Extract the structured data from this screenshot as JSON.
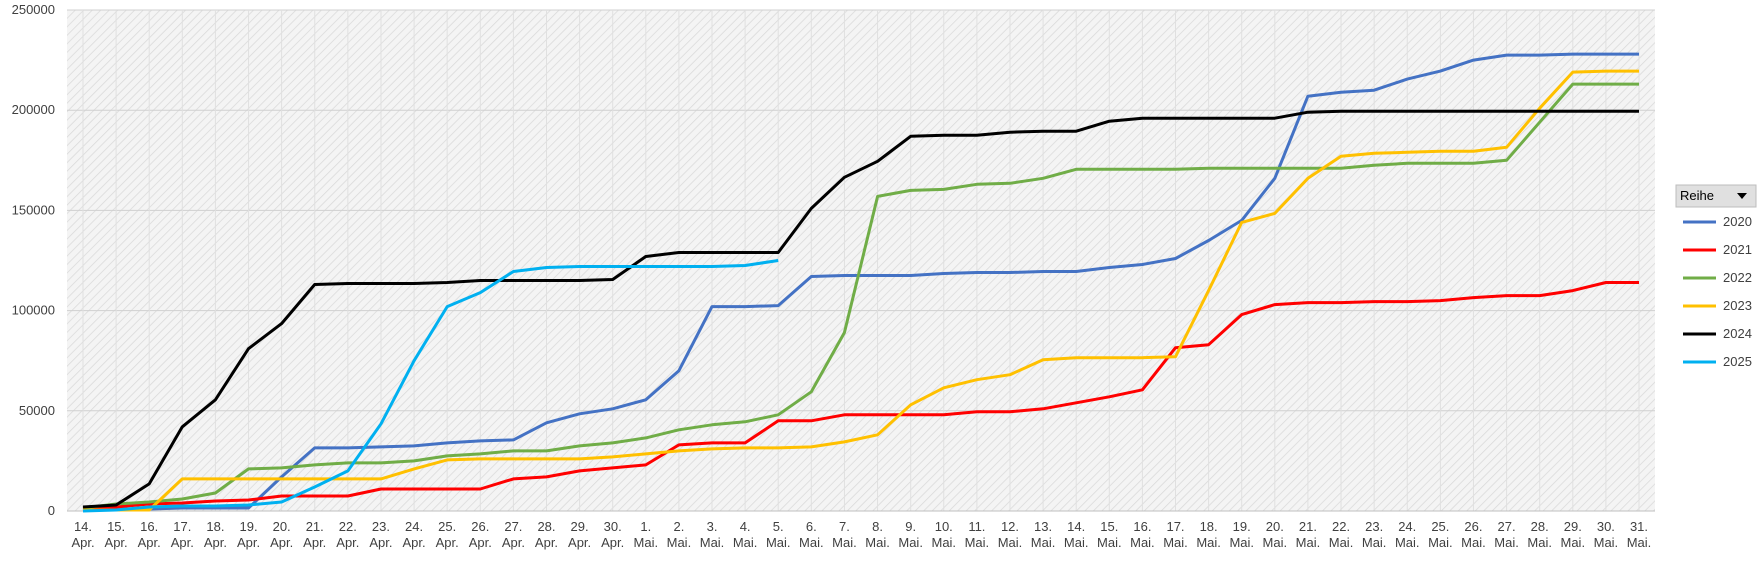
{
  "chart_data": {
    "type": "line",
    "legend_title": "Reihe",
    "legend": "right",
    "grid": true,
    "categories": [
      "14. Apr.",
      "15. Apr.",
      "16. Apr.",
      "17. Apr.",
      "18. Apr.",
      "19. Apr.",
      "20. Apr.",
      "21. Apr.",
      "22. Apr.",
      "23. Apr.",
      "24. Apr.",
      "25. Apr.",
      "26. Apr.",
      "27. Apr.",
      "28. Apr.",
      "29. Apr.",
      "30. Apr.",
      "1. Mai.",
      "2. Mai.",
      "3. Mai.",
      "4. Mai.",
      "5. Mai.",
      "6. Mai.",
      "7. Mai.",
      "8. Mai.",
      "9. Mai.",
      "10. Mai.",
      "11. Mai.",
      "12. Mai.",
      "13. Mai.",
      "14. Mai.",
      "15. Mai.",
      "16. Mai.",
      "17. Mai.",
      "18. Mai.",
      "19. Mai.",
      "20. Mai.",
      "21. Mai.",
      "22. Mai.",
      "23. Mai.",
      "24. Mai.",
      "25. Mai.",
      "26. Mai.",
      "27. Mai.",
      "28. Mai.",
      "29. Mai.",
      "30. Mai.",
      "31. Mai."
    ],
    "ylim": [
      0,
      250000
    ],
    "yticks": [
      0,
      50000,
      100000,
      150000,
      200000,
      250000
    ],
    "series": [
      {
        "name": "2020",
        "color": "#4472c4",
        "values": [
          1000,
          1000,
          1000,
          1500,
          1500,
          1500,
          17000,
          31500,
          31500,
          32000,
          32500,
          34000,
          35000,
          35500,
          44000,
          48500,
          51000,
          55500,
          70000,
          102000,
          102000,
          102500,
          117000,
          117500,
          117500,
          117500,
          118500,
          119000,
          119000,
          119500,
          119500,
          121500,
          123000,
          126000,
          135000,
          145000,
          166000,
          207000,
          209000,
          210000,
          215500,
          219500,
          225000,
          227500,
          227500,
          228000,
          228000,
          228000
        ]
      },
      {
        "name": "2021",
        "color": "#ff0000",
        "values": [
          1500,
          2000,
          3500,
          4000,
          5000,
          5500,
          7500,
          7500,
          7500,
          11000,
          11000,
          11000,
          11000,
          16000,
          17000,
          20000,
          21500,
          23000,
          33000,
          34000,
          34000,
          45000,
          45000,
          48000,
          48000,
          48000,
          48000,
          49500,
          49500,
          51000,
          54000,
          57000,
          60500,
          81500,
          83000,
          98000,
          103000,
          104000,
          104000,
          104500,
          104500,
          105000,
          106500,
          107500,
          107500,
          110000,
          114000,
          114000
        ]
      },
      {
        "name": "2022",
        "color": "#70ad47",
        "values": [
          1500,
          3500,
          4500,
          6000,
          9000,
          21000,
          21500,
          23000,
          24000,
          24000,
          25000,
          27500,
          28500,
          30000,
          30000,
          32500,
          34000,
          36500,
          40500,
          43000,
          44500,
          48000,
          59500,
          89000,
          157000,
          160000,
          160500,
          163000,
          163500,
          166000,
          170500,
          170500,
          170500,
          170500,
          171000,
          171000,
          171000,
          171000,
          171000,
          172500,
          173500,
          173500,
          173500,
          175000,
          194000,
          213000,
          213000,
          213000
        ]
      },
      {
        "name": "2023",
        "color": "#ffc000",
        "values": [
          500,
          500,
          500,
          16000,
          16000,
          16000,
          16000,
          16000,
          16000,
          16000,
          21000,
          25500,
          26000,
          26000,
          26000,
          26000,
          27000,
          28500,
          30000,
          31000,
          31500,
          31500,
          32000,
          34500,
          38000,
          53000,
          61500,
          65500,
          68000,
          75500,
          76500,
          76500,
          76500,
          77000,
          110000,
          144000,
          148500,
          166000,
          177000,
          178500,
          179000,
          179500,
          179500,
          181500,
          201000,
          219000,
          219500,
          219500
        ]
      },
      {
        "name": "2024",
        "color": "#000000",
        "values": [
          2000,
          3000,
          13500,
          42000,
          55500,
          81000,
          93500,
          113000,
          113500,
          113500,
          113500,
          114000,
          115000,
          115000,
          115000,
          115000,
          115500,
          127000,
          129000,
          129000,
          129000,
          129000,
          151000,
          166500,
          174500,
          187000,
          187500,
          187500,
          189000,
          189500,
          189500,
          194500,
          196000,
          196000,
          196000,
          196000,
          196000,
          199000,
          199500,
          199500,
          199500,
          199500,
          199500,
          199500,
          199500,
          199500,
          199500,
          199500
        ]
      },
      {
        "name": "2025",
        "color": "#00b0f0",
        "values": [
          0,
          500,
          2000,
          2500,
          2500,
          3000,
          4500,
          12000,
          20000,
          43500,
          75000,
          102000,
          109000,
          119500,
          121500,
          122000,
          122000,
          122000,
          122000,
          122000,
          122500,
          125000,
          null,
          null,
          null,
          null,
          null,
          null,
          null,
          null,
          null,
          null,
          null,
          null,
          null,
          null,
          null,
          null,
          null,
          null,
          null,
          null,
          null,
          null,
          null,
          null,
          null,
          null
        ]
      }
    ]
  }
}
